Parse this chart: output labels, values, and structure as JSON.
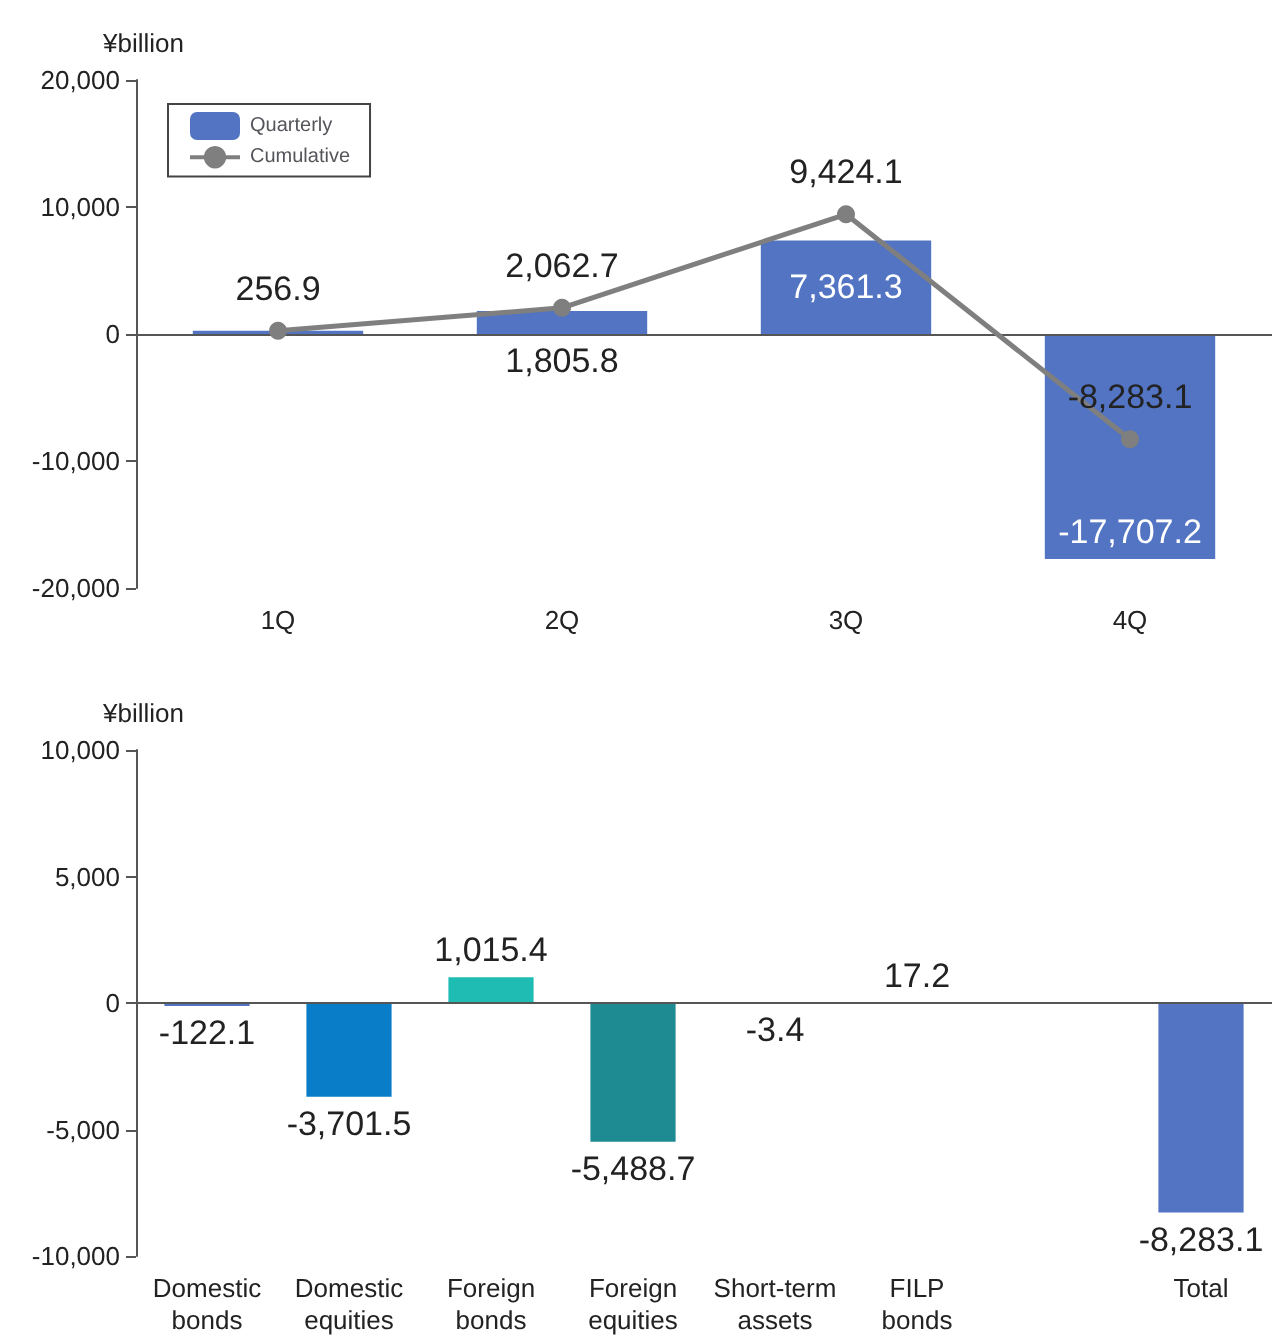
{
  "chart_data": [
    {
      "type": "bar",
      "ylabel": "¥billion",
      "categories": [
        "1Q",
        "2Q",
        "3Q",
        "4Q"
      ],
      "ylim": [
        -20000,
        20000
      ],
      "yticks": [
        {
          "value": -20000,
          "label": "-20,000"
        },
        {
          "value": -10000,
          "label": "-10,000"
        },
        0,
        {
          "value": 10000,
          "label": "10,000"
        },
        {
          "value": 20000,
          "label": "20,000"
        }
      ],
      "legend": "top left",
      "grid": false,
      "ref_lines": [
        {
          "axis": "y",
          "value": 0,
          "color": "#555555"
        }
      ],
      "series": [
        {
          "name": "Quarterly",
          "color": "#5274c2",
          "values": [
            256.9,
            1805.8,
            7361.3,
            -17707.2
          ],
          "value_labels": [
            null,
            "1,805.8",
            "7,361.3",
            "-17,707.2"
          ]
        },
        {
          "name": "Cumulative",
          "type": "line",
          "color": "#7f7f7f",
          "marker": "circle",
          "values": [
            256.9,
            2062.7,
            9424.1,
            -8283.1
          ],
          "value_labels": [
            "256.9",
            "2,062.7",
            "9,424.1",
            "-8,283.1"
          ]
        }
      ]
    },
    {
      "type": "bar",
      "ylabel": "¥billion",
      "categories": [
        "Domestic bonds",
        "Domestic equities",
        "Foreign bonds",
        "Foreign equities",
        "Short-term assets",
        "FILP bonds",
        null,
        "Total"
      ],
      "ylim": [
        -10000,
        10000
      ],
      "yticks": [
        {
          "value": -10000,
          "label": "-10,000"
        },
        {
          "value": -5000,
          "label": "-5,000"
        },
        0,
        {
          "value": 5000,
          "label": "5,000"
        },
        {
          "value": 10000,
          "label": "10,000"
        }
      ],
      "grid": false,
      "ref_lines": [
        {
          "axis": "y",
          "value": 0,
          "color": "#555555"
        }
      ],
      "values": [
        -122.1,
        -3701.5,
        1015.4,
        -5488.7,
        -3.4,
        17.2,
        null,
        -8283.1
      ],
      "colors": [
        "#5274c2",
        "#0a7dc9",
        "#1fbcb4",
        "#1e8a92",
        "#7f7f7f",
        "#1e8a92",
        "#5274c2",
        "#5274c2"
      ],
      "value_labels": [
        "-122.1",
        "-3,701.5",
        "1,015.4",
        "-5,488.7",
        "-3.4",
        "17.2",
        null,
        "-8,283.1"
      ]
    }
  ]
}
